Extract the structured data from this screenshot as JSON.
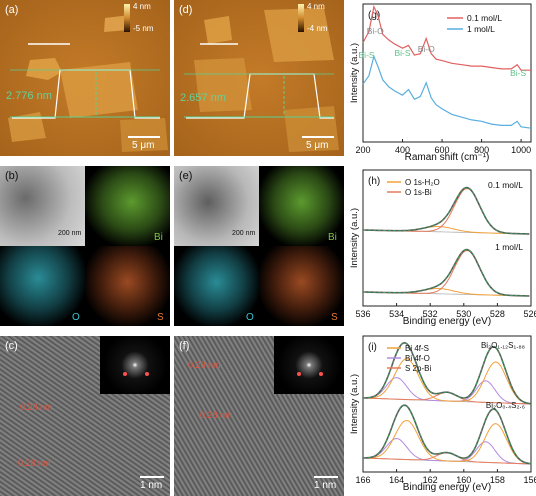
{
  "panel_a": {
    "label": "(a)",
    "cb_max": "4 nm",
    "cb_min": "-5 nm",
    "height": "2.776 nm",
    "scale": "5 μm"
  },
  "panel_d": {
    "label": "(d)",
    "cb_max": "4 nm",
    "cb_min": "-4 nm",
    "height": "2.657 nm",
    "scale": "5 μm"
  },
  "panel_b": {
    "label": "(b)",
    "scale": "200 nm",
    "el1": "Bi",
    "el2": "O",
    "el3": "S"
  },
  "panel_e": {
    "label": "(e)",
    "scale": "200 nm",
    "el1": "Bi",
    "el2": "O",
    "el3": "S"
  },
  "panel_c": {
    "label": "(c)",
    "spacing1": "0.28 nm",
    "spacing2": "0.28 nm",
    "scale": "1 nm"
  },
  "panel_f": {
    "label": "(f)",
    "spacing1": "0.28 nm",
    "spacing2": "0.28 nm",
    "scale": "1 nm"
  },
  "colors": {
    "afm_bg": "#b97322",
    "bi_map": "#7fc34a",
    "o_map": "#3fc6d2",
    "s_map": "#e8773a",
    "red_series": "#e06060",
    "blue_series": "#5aaee0",
    "fit_green": "#3aa05a"
  },
  "chart_data": [
    {
      "type": "line",
      "label": "(g)",
      "xlabel": "Raman shift (cm⁻¹)",
      "ylabel": "Intensity (a.u.)",
      "xlim": [
        200,
        1050
      ],
      "xticks": [
        "200",
        "400",
        "600",
        "800",
        "1000"
      ],
      "legend": [
        "0.1 mol/L",
        "1 mol/L"
      ],
      "annotations": [
        "Bi-O",
        "Bi-S",
        "Bi-S",
        "Bi-O",
        "Bi-S"
      ],
      "series": [
        {
          "name": "0.1 mol/L",
          "x": [
            200,
            230,
            255,
            275,
            300,
            330,
            360,
            400,
            430,
            460,
            490,
            520,
            545,
            570,
            600,
            650,
            700,
            750,
            800,
            850,
            900,
            950,
            980,
            1000,
            1050
          ],
          "y": [
            0.72,
            0.8,
            0.98,
            0.92,
            0.78,
            0.74,
            0.71,
            0.68,
            0.7,
            0.63,
            0.64,
            0.75,
            0.64,
            0.6,
            0.59,
            0.57,
            0.56,
            0.55,
            0.55,
            0.54,
            0.53,
            0.53,
            0.56,
            0.52,
            0.52
          ]
        },
        {
          "name": "1 mol/L",
          "x": [
            200,
            230,
            255,
            275,
            300,
            330,
            360,
            400,
            430,
            460,
            490,
            520,
            545,
            570,
            600,
            650,
            700,
            750,
            800,
            850,
            900,
            950,
            980,
            1000,
            1050
          ],
          "y": [
            0.42,
            0.48,
            0.62,
            0.55,
            0.45,
            0.4,
            0.37,
            0.34,
            0.38,
            0.31,
            0.33,
            0.43,
            0.32,
            0.27,
            0.24,
            0.2,
            0.18,
            0.16,
            0.15,
            0.13,
            0.12,
            0.12,
            0.15,
            0.11,
            0.1
          ]
        }
      ]
    },
    {
      "type": "line",
      "label": "(h)",
      "xlabel": "Binding energy (eV)",
      "ylabel": "Intensity (a.u.)",
      "xlim": [
        536,
        526
      ],
      "xticks": [
        "536",
        "534",
        "532",
        "530",
        "528",
        "526"
      ],
      "legend": [
        "O 1s-H₂O",
        "O 1s-Bi"
      ],
      "curve_labels": [
        "0.1 mol/L",
        "1 mol/L"
      ],
      "peaks": [
        {
          "name": "O 1s-Bi",
          "center": 529.8
        },
        {
          "name": "O 1s-H₂O",
          "center": 531.5
        }
      ]
    },
    {
      "type": "line",
      "label": "(i)",
      "xlabel": "Binding energy (eV)",
      "ylabel": "Intensity (a.u.)",
      "xlim": [
        166,
        156
      ],
      "xticks": [
        "166",
        "164",
        "162",
        "160",
        "158",
        "156"
      ],
      "legend": [
        "Bi 4f-S",
        "Bi 4f-O",
        "S 2p-Bi"
      ],
      "curve_labels": [
        "Bi₂O₁.₁₂S₁.₈₈",
        "Bi₂O₀.₄S₂.₆"
      ],
      "peaks": [
        {
          "name": "Bi 4f-S",
          "center": 163.4
        },
        {
          "name": "Bi 4f-S",
          "center": 158.1
        },
        {
          "name": "Bi 4f-O",
          "center": 164.0
        },
        {
          "name": "Bi 4f-O",
          "center": 158.7
        },
        {
          "name": "S 2p-Bi",
          "center": 161.0
        }
      ]
    }
  ]
}
